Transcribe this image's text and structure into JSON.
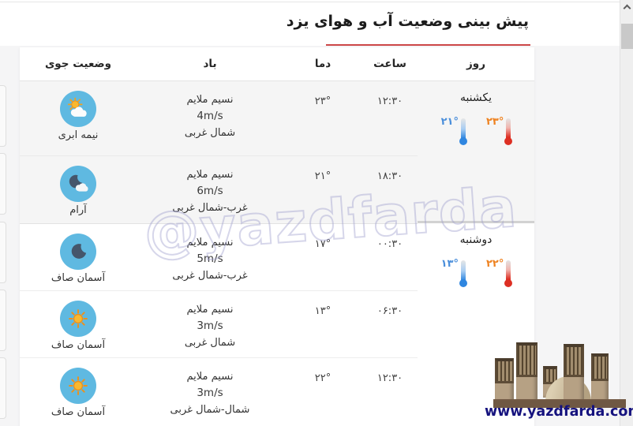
{
  "page": {
    "title": "پیش بینی وضعیت آب و هوای یزد",
    "watermark": "@yazdfarda",
    "site_url": "www.yazdfarda.com"
  },
  "table": {
    "headers": {
      "day": "روز",
      "time": "ساعت",
      "temp": "دما",
      "wind": "باد",
      "condition": "وضعیت جوی"
    },
    "rows": [
      {
        "time": "۱۲:۳۰",
        "temp": "۲۳°",
        "wind_type": "نسیم ملایم",
        "wind_speed": "4m/s",
        "wind_dir": "شمال غربی",
        "condition": "نیمه ابری",
        "icon": "sun-cloud-icon"
      },
      {
        "time": "۱۸:۳۰",
        "temp": "۲۱°",
        "wind_type": "نسیم ملایم",
        "wind_speed": "6m/s",
        "wind_dir": "غرب-شمال غربی",
        "condition": "آرام",
        "icon": "moon-cloud-icon"
      },
      {
        "time": "۰۰:۳۰",
        "temp": "۱۷°",
        "wind_type": "نسیم ملایم",
        "wind_speed": "5m/s",
        "wind_dir": "غرب-شمال غربی",
        "condition": "آسمان صاف",
        "icon": "moon-icon"
      },
      {
        "time": "۰۶:۳۰",
        "temp": "۱۳°",
        "wind_type": "نسیم ملایم",
        "wind_speed": "3m/s",
        "wind_dir": "شمال غربی",
        "condition": "آسمان صاف",
        "icon": "sun-icon"
      },
      {
        "time": "۱۲:۳۰",
        "temp": "۲۲°",
        "wind_type": "نسیم ملایم",
        "wind_speed": "3m/s",
        "wind_dir": "شمال-شمال غربی",
        "condition": "آسمان صاف",
        "icon": "sun-icon"
      }
    ],
    "day_groups": [
      {
        "day": "یکشنبه",
        "max_temp": "۲۳°",
        "min_temp": "۲۱°"
      },
      {
        "day": "دوشنبه",
        "max_temp": "۲۲°",
        "min_temp": "۱۳°"
      }
    ]
  },
  "colors": {
    "accent_underline": "#cc4747",
    "icon_circle": "#5fb9e1",
    "max_temp_label": "#ee8220",
    "min_temp_label": "#4b8fdb",
    "site_url_text": "#15127e"
  }
}
